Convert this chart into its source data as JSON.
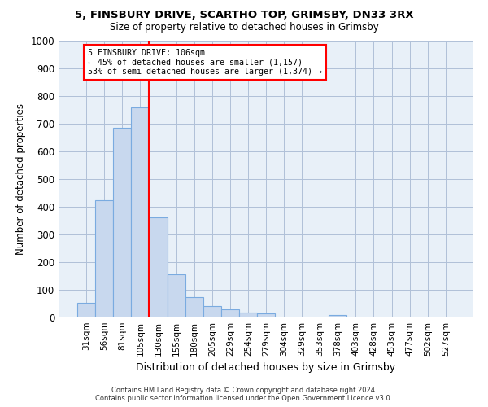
{
  "title_line1": "5, FINSBURY DRIVE, SCARTHO TOP, GRIMSBY, DN33 3RX",
  "title_line2": "Size of property relative to detached houses in Grimsby",
  "xlabel": "Distribution of detached houses by size in Grimsby",
  "ylabel": "Number of detached properties",
  "footnote1": "Contains HM Land Registry data © Crown copyright and database right 2024.",
  "footnote2": "Contains public sector information licensed under the Open Government Licence v3.0.",
  "bin_labels": [
    "31sqm",
    "56sqm",
    "81sqm",
    "105sqm",
    "130sqm",
    "155sqm",
    "180sqm",
    "205sqm",
    "229sqm",
    "254sqm",
    "279sqm",
    "304sqm",
    "329sqm",
    "353sqm",
    "378sqm",
    "403sqm",
    "428sqm",
    "453sqm",
    "477sqm",
    "502sqm",
    "527sqm"
  ],
  "bar_values": [
    52,
    425,
    685,
    760,
    362,
    155,
    75,
    40,
    28,
    18,
    14,
    0,
    0,
    0,
    10,
    0,
    0,
    0,
    0,
    0,
    0
  ],
  "bar_color": "#c8d8ee",
  "bar_edge_color": "#7aabe0",
  "plot_bg_color": "#e8f0f8",
  "ylim": [
    0,
    1000
  ],
  "yticks": [
    0,
    100,
    200,
    300,
    400,
    500,
    600,
    700,
    800,
    900,
    1000
  ],
  "vline_x": 3.5,
  "annotation_text": "5 FINSBURY DRIVE: 106sqm\n← 45% of detached houses are smaller (1,157)\n53% of semi-detached houses are larger (1,374) →",
  "annotation_box_color": "white",
  "annotation_box_edge_color": "red",
  "vline_color": "red",
  "grid_color": "#b0c0d8",
  "background_color": "white",
  "title1_fontsize": 9.5,
  "title2_fontsize": 8.5
}
